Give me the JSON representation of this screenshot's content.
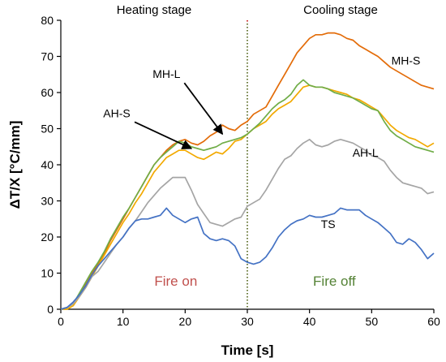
{
  "chart_data": {
    "type": "line",
    "xlabel": "Time [s]",
    "ylabel": "ΔT/X [°C/mm]",
    "xlim": [
      0,
      60
    ],
    "ylim": [
      0,
      80
    ],
    "xticks": [
      0,
      10,
      20,
      30,
      40,
      50,
      60
    ],
    "yticks": [
      0,
      10,
      20,
      30,
      40,
      50,
      60,
      70,
      80
    ],
    "grid": false,
    "legend": "none",
    "vertical_marker": {
      "x": 30,
      "style": "dotted",
      "colors": [
        "#c00000",
        "#548235"
      ]
    },
    "regions": [
      {
        "label": "Heating stage",
        "x_range": [
          0,
          30
        ]
      },
      {
        "label": "Cooling stage",
        "x_range": [
          30,
          60
        ]
      }
    ],
    "annotations": [
      {
        "text": "Fire on",
        "x": 18.5,
        "y": 6.5,
        "color": "#c0504d"
      },
      {
        "text": "Fire off",
        "x": 44,
        "y": 6.5,
        "color": "#548235"
      }
    ],
    "series": [
      {
        "name": "MH-S",
        "color": "#e36c09",
        "x": [
          0,
          1,
          2,
          3,
          4,
          5,
          6,
          7,
          8,
          9,
          10,
          11,
          12,
          13,
          14,
          15,
          16,
          17,
          18,
          19,
          20,
          21,
          22,
          23,
          24,
          25,
          26,
          27,
          28,
          29,
          30,
          31,
          32,
          33,
          34,
          35,
          36,
          37,
          38,
          39,
          40,
          41,
          42,
          43,
          44,
          45,
          46,
          47,
          48,
          49,
          50,
          51,
          52,
          53,
          54,
          55,
          56,
          57,
          58,
          59,
          60
        ],
        "values": [
          0,
          0.5,
          1.5,
          4,
          7,
          10,
          12.5,
          15.5,
          19,
          22,
          25,
          28,
          31,
          34,
          37,
          40,
          42,
          44,
          45.5,
          46.5,
          47,
          46,
          45.5,
          46.5,
          48,
          49,
          51,
          50,
          49.5,
          51,
          52,
          54,
          55,
          56,
          59,
          62,
          65,
          68,
          71,
          73,
          75,
          76,
          76,
          76.5,
          76.5,
          76,
          75,
          74.5,
          73,
          72,
          71,
          70,
          68.5,
          67,
          66,
          65,
          64,
          63,
          62,
          61.5,
          61
        ]
      },
      {
        "name": "MH-L",
        "color": "#f2a900",
        "x": [
          0,
          1,
          2,
          3,
          4,
          5,
          6,
          7,
          8,
          9,
          10,
          11,
          12,
          13,
          14,
          15,
          16,
          17,
          18,
          19,
          20,
          21,
          22,
          23,
          24,
          25,
          26,
          27,
          28,
          29,
          30,
          31,
          32,
          33,
          34,
          35,
          36,
          37,
          38,
          39,
          40,
          41,
          42,
          43,
          44,
          45,
          46,
          47,
          48,
          49,
          50,
          51,
          52,
          53,
          54,
          55,
          56,
          57,
          58,
          59,
          60
        ],
        "values": [
          0,
          0,
          1,
          3.5,
          6,
          9,
          12,
          15,
          18,
          21,
          24,
          26.5,
          29.5,
          32,
          35,
          38,
          40,
          42,
          43,
          44,
          44,
          43,
          42,
          41.5,
          42.5,
          43.5,
          43,
          44.5,
          46.5,
          47,
          48.5,
          50,
          51,
          52,
          54,
          55.5,
          56.5,
          57.5,
          59.5,
          61.5,
          62,
          61.5,
          61.5,
          61,
          60.5,
          60,
          59.5,
          58.5,
          58,
          57,
          56,
          55,
          53,
          51,
          49.5,
          48.5,
          47.5,
          47,
          46,
          45,
          46
        ]
      },
      {
        "name": "AH-S",
        "color": "#70ad47",
        "x": [
          0,
          1,
          2,
          3,
          4,
          5,
          6,
          7,
          8,
          9,
          10,
          11,
          12,
          13,
          14,
          15,
          16,
          17,
          18,
          19,
          20,
          21,
          22,
          23,
          24,
          25,
          26,
          27,
          28,
          29,
          30,
          31,
          32,
          33,
          34,
          35,
          36,
          37,
          38,
          39,
          40,
          41,
          42,
          43,
          44,
          45,
          46,
          47,
          48,
          49,
          50,
          51,
          52,
          53,
          54,
          55,
          56,
          57,
          58,
          59,
          60
        ],
        "values": [
          0,
          0.5,
          1.5,
          4.5,
          7.5,
          10.5,
          13,
          16,
          19.5,
          22.5,
          25.5,
          28,
          31,
          34,
          37,
          40,
          42,
          43.5,
          45,
          46.5,
          46,
          45,
          44.5,
          44,
          44.5,
          45,
          46,
          46.5,
          47,
          47.5,
          48.5,
          50,
          51.5,
          53.5,
          55.5,
          57,
          58,
          59.5,
          62,
          63.5,
          62,
          61.5,
          61.5,
          61,
          60,
          59.5,
          59,
          58.5,
          57.5,
          56.5,
          55.5,
          55,
          52,
          49.5,
          48,
          47,
          46,
          45,
          44.5,
          44,
          43.5
        ]
      },
      {
        "name": "AH-L",
        "color": "#a5a5a5",
        "x": [
          0,
          1,
          2,
          3,
          4,
          5,
          6,
          7,
          8,
          9,
          10,
          11,
          12,
          13,
          14,
          15,
          16,
          17,
          18,
          19,
          20,
          21,
          22,
          23,
          24,
          25,
          26,
          27,
          28,
          29,
          30,
          31,
          32,
          33,
          34,
          35,
          36,
          37,
          38,
          39,
          40,
          41,
          42,
          43,
          44,
          45,
          46,
          47,
          48,
          49,
          50,
          51,
          52,
          53,
          54,
          55,
          56,
          57,
          58,
          59,
          60
        ],
        "values": [
          0,
          0.5,
          1.5,
          3.5,
          6,
          9,
          10.5,
          13,
          15.5,
          18,
          20,
          22.5,
          24.5,
          27,
          29.5,
          31.5,
          33.5,
          35,
          36.5,
          36.5,
          36.5,
          33,
          29,
          26.5,
          24,
          23.5,
          23,
          24,
          25,
          25.5,
          28.5,
          29.5,
          30.5,
          33,
          36,
          39,
          41.5,
          42.5,
          44.5,
          46,
          47,
          45.5,
          45,
          45.5,
          46.5,
          47,
          46.5,
          46,
          45,
          44,
          42.5,
          42,
          41,
          38.5,
          36.5,
          35,
          34.5,
          34,
          33.5,
          32,
          32.5
        ]
      },
      {
        "name": "TS",
        "color": "#4472c4",
        "x": [
          0,
          1,
          2,
          3,
          4,
          5,
          6,
          7,
          8,
          9,
          10,
          11,
          12,
          13,
          14,
          15,
          16,
          17,
          18,
          19,
          20,
          21,
          22,
          23,
          24,
          25,
          26,
          27,
          28,
          29,
          30,
          31,
          32,
          33,
          34,
          35,
          36,
          37,
          38,
          39,
          40,
          41,
          42,
          43,
          44,
          45,
          46,
          47,
          48,
          49,
          50,
          51,
          52,
          53,
          54,
          55,
          56,
          57,
          58,
          59,
          60
        ],
        "values": [
          0,
          0.5,
          2,
          4,
          6.5,
          9.5,
          12,
          14,
          16,
          18,
          20,
          22.5,
          24.5,
          25,
          25,
          25.5,
          26,
          28,
          26,
          25,
          24,
          25,
          25.5,
          21,
          19.5,
          19,
          19.5,
          19,
          17.5,
          14,
          13,
          12.5,
          13,
          14.5,
          17,
          20,
          22,
          23.5,
          24.5,
          25,
          26,
          25.5,
          25.5,
          26,
          26.5,
          28,
          27.5,
          27.5,
          27.5,
          26,
          25,
          24,
          22.5,
          21,
          18.5,
          18,
          19.5,
          18.5,
          16.5,
          14,
          15.5
        ]
      }
    ],
    "series_labels": [
      {
        "text": "MH-S",
        "series": "MH-S",
        "x": 55.5,
        "y": 67.8
      },
      {
        "text": "AH-L",
        "series": "AH-L",
        "x": 49,
        "y": 42.2
      },
      {
        "text": "TS",
        "series": "TS",
        "x": 43,
        "y": 22.5
      },
      {
        "text": "MH-L",
        "series": "MH-L",
        "x": 17,
        "y": 64,
        "arrow_to": [
          26,
          48.5
        ]
      },
      {
        "text": "AH-S",
        "series": "AH-S",
        "x": 9,
        "y": 53.2,
        "arrow_to": [
          21,
          44.5
        ]
      }
    ]
  }
}
